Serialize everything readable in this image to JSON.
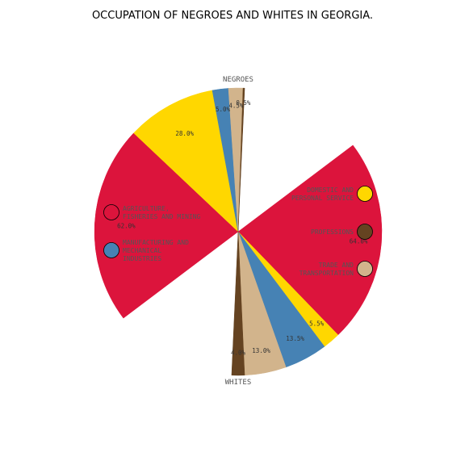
{
  "chart_data": {
    "type": "pie",
    "title": "OCCUPATION OF NEGROES AND WHITES IN GEORGIA.",
    "groups": [
      {
        "name": "NEGROES",
        "slices": [
          {
            "category": "agriculture",
            "value": 62.0,
            "label": "62.0%"
          },
          {
            "category": "domestic",
            "value": 28.0,
            "label": "28.0%"
          },
          {
            "category": "manufacturing",
            "value": 5.0,
            "label": "5.0%"
          },
          {
            "category": "trade",
            "value": 4.5,
            "label": "4.5%"
          },
          {
            "category": "professions",
            "value": 0.5,
            "label": "0.5%"
          }
        ]
      },
      {
        "name": "WHITES",
        "slices": [
          {
            "category": "agriculture",
            "value": 64.0,
            "label": "64.0%"
          },
          {
            "category": "domestic",
            "value": 5.5,
            "label": "5.5%"
          },
          {
            "category": "manufacturing",
            "value": 13.5,
            "label": "13.5%"
          },
          {
            "category": "trade",
            "value": 13.0,
            "label": "13.0%"
          },
          {
            "category": "professions",
            "value": 4.0,
            "label": "4.0%"
          }
        ]
      }
    ],
    "legend": [
      {
        "category": "agriculture",
        "lines": [
          "AGRICULTURE,",
          "FISHERIES AND MINING"
        ],
        "color": "#dc143c",
        "side": "left"
      },
      {
        "category": "manufacturing",
        "lines": [
          "MANUFACTURING AND",
          "MECHANICAL",
          "INDUSTRIES"
        ],
        "color": "#4682b4",
        "side": "left"
      },
      {
        "category": "domestic",
        "lines": [
          "DOMESTIC AND",
          "PERSONAL SERVICE"
        ],
        "color": "#ffd700",
        "side": "right"
      },
      {
        "category": "professions",
        "lines": [
          "PROFESSIONS"
        ],
        "color": "#654321",
        "side": "right"
      },
      {
        "category": "trade",
        "lines": [
          "TRADE AND",
          "TRANSPORTATION"
        ],
        "color": "#d2b48c",
        "side": "right"
      }
    ]
  }
}
